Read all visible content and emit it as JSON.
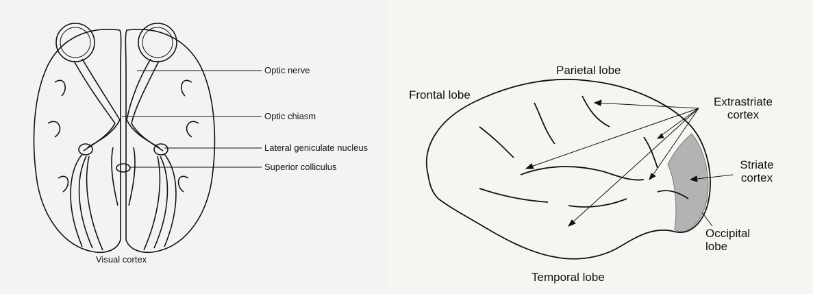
{
  "left_diagram": {
    "labels": {
      "optic_nerve": "Optic nerve",
      "optic_chiasm": "Optic chiasm",
      "lateral_geniculate": "Lateral geniculate nucleus",
      "superior_colliculus": "Superior colliculus",
      "visual_cortex": "Visual cortex"
    }
  },
  "right_diagram": {
    "labels": {
      "parietal": "Parietal lobe",
      "frontal": "Frontal lobe",
      "extrastriate_1": "Extrastriate",
      "extrastriate_2": "cortex",
      "striate_1": "Striate",
      "striate_2": "cortex",
      "occipital_1": "Occipital",
      "occipital_2": "lobe",
      "temporal": "Temporal lobe"
    }
  },
  "colors": {
    "background_left": "#f3f3f3",
    "background_right": "#f6f5f2",
    "ink": "#111111",
    "striate_fill": "#b3b3b3"
  }
}
